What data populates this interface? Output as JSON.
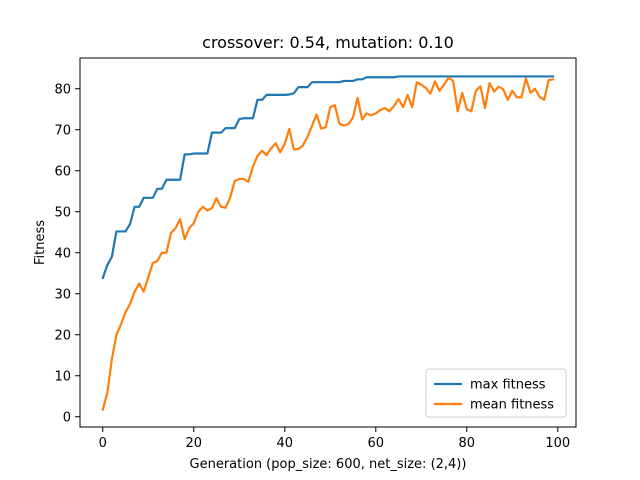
{
  "chart_data": {
    "type": "line",
    "title": "crossover: 0.54, mutation: 0.10",
    "xlabel": "Generation (pop_size: 600, net_size: (2,4))",
    "ylabel": "Fitness",
    "xlim": [
      -5,
      104
    ],
    "ylim": [
      -2.5,
      87.5
    ],
    "xticks": [
      0,
      20,
      40,
      60,
      80,
      100
    ],
    "yticks": [
      0,
      10,
      20,
      30,
      40,
      50,
      60,
      70,
      80
    ],
    "grid": false,
    "legend_position": "lower right",
    "series": [
      {
        "name": "max fitness",
        "color": "#1f77b4",
        "x": [
          0,
          1,
          2,
          3,
          4,
          5,
          6,
          7,
          8,
          9,
          10,
          11,
          12,
          13,
          14,
          15,
          16,
          17,
          18,
          19,
          20,
          21,
          22,
          23,
          24,
          25,
          26,
          27,
          28,
          29,
          30,
          31,
          32,
          33,
          34,
          35,
          36,
          37,
          38,
          39,
          40,
          41,
          42,
          43,
          44,
          45,
          46,
          47,
          48,
          49,
          50,
          51,
          52,
          53,
          54,
          55,
          56,
          57,
          58,
          59,
          60,
          61,
          62,
          63,
          64,
          65,
          66,
          67,
          68,
          69,
          70,
          71,
          72,
          73,
          74,
          75,
          76,
          77,
          78,
          79,
          80,
          81,
          82,
          83,
          84,
          85,
          86,
          87,
          88,
          89,
          90,
          91,
          92,
          93,
          94,
          95,
          96,
          97,
          98,
          99
        ],
        "values": [
          33.8,
          37.0,
          39.0,
          45.2,
          45.2,
          45.2,
          47.0,
          51.2,
          51.2,
          53.4,
          53.4,
          53.4,
          55.6,
          55.6,
          57.8,
          57.8,
          57.8,
          57.8,
          64.0,
          64.0,
          64.2,
          64.2,
          64.2,
          64.2,
          69.3,
          69.3,
          69.3,
          70.4,
          70.4,
          70.4,
          72.6,
          72.8,
          72.8,
          72.8,
          77.3,
          77.3,
          78.5,
          78.5,
          78.5,
          78.5,
          78.5,
          78.6,
          78.9,
          80.4,
          80.4,
          80.4,
          81.6,
          81.6,
          81.6,
          81.6,
          81.6,
          81.6,
          81.6,
          81.9,
          81.9,
          81.9,
          82.3,
          82.3,
          82.8,
          82.8,
          82.8,
          82.8,
          82.8,
          82.8,
          82.8,
          83.0,
          83.0,
          83.0,
          83.0,
          83.0,
          83.0,
          83.0,
          83.0,
          83.0,
          83.0,
          83.0,
          83.0,
          83.0,
          83.0,
          83.0,
          83.0,
          83.0,
          83.0,
          83.0,
          83.0,
          83.0,
          83.0,
          83.0,
          83.0,
          83.0,
          83.0,
          83.0,
          83.0,
          83.0,
          83.0,
          83.0,
          83.0,
          83.0,
          83.0,
          83.0
        ]
      },
      {
        "name": "mean fitness",
        "color": "#ff7f0e",
        "x": [
          0,
          1,
          2,
          3,
          4,
          5,
          6,
          7,
          8,
          9,
          10,
          11,
          12,
          13,
          14,
          15,
          16,
          17,
          18,
          19,
          20,
          21,
          22,
          23,
          24,
          25,
          26,
          27,
          28,
          29,
          30,
          31,
          32,
          33,
          34,
          35,
          36,
          37,
          38,
          39,
          40,
          41,
          42,
          43,
          44,
          45,
          46,
          47,
          48,
          49,
          50,
          51,
          52,
          53,
          54,
          55,
          56,
          57,
          58,
          59,
          60,
          61,
          62,
          63,
          64,
          65,
          66,
          67,
          68,
          69,
          70,
          71,
          72,
          73,
          74,
          75,
          76,
          77,
          78,
          79,
          80,
          81,
          82,
          83,
          84,
          85,
          86,
          87,
          88,
          89,
          90,
          91,
          92,
          93,
          94,
          95,
          96,
          97,
          98,
          99
        ],
        "values": [
          1.7,
          5.8,
          14.0,
          20.0,
          22.5,
          25.5,
          27.5,
          30.5,
          32.5,
          30.5,
          34.0,
          37.5,
          38.0,
          40.0,
          40.0,
          44.9,
          46.0,
          48.2,
          43.3,
          46.0,
          47.2,
          50.0,
          51.2,
          50.3,
          50.9,
          53.3,
          51.2,
          51.0,
          53.5,
          57.5,
          58.0,
          58.0,
          57.3,
          61.0,
          63.6,
          64.9,
          63.8,
          65.5,
          66.7,
          64.5,
          66.6,
          70.2,
          65.2,
          65.3,
          66.2,
          68.3,
          71.0,
          73.7,
          70.3,
          70.6,
          75.5,
          76.0,
          71.5,
          71.0,
          71.4,
          73.0,
          77.8,
          72.5,
          74.0,
          73.5,
          74.0,
          74.8,
          75.3,
          74.5,
          75.8,
          77.5,
          75.5,
          78.5,
          75.5,
          81.6,
          81.0,
          80.2,
          78.8,
          81.8,
          79.5,
          81.0,
          82.7,
          81.9,
          74.5,
          79.0,
          75.0,
          74.5,
          79.5,
          80.6,
          75.3,
          81.4,
          79.3,
          80.5,
          79.9,
          77.3,
          79.5,
          77.9,
          77.9,
          82.5,
          79.0,
          80.0,
          78.0,
          77.3,
          82.1,
          82.3
        ]
      }
    ]
  }
}
